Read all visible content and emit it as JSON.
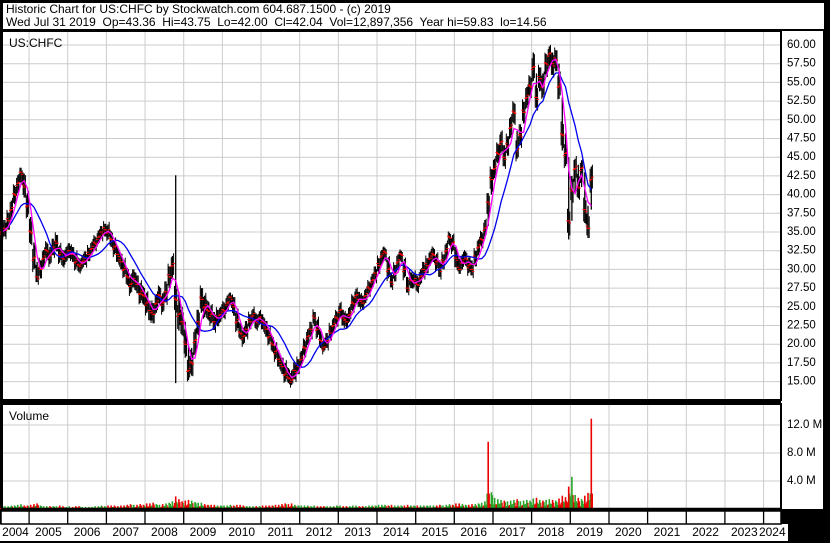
{
  "header": {
    "line1": "Historic Chart for US:CHFC by Stockwatch.com 604.687.1500 - (c) 2019",
    "line2": "Wed Jul 31 2019  Op=43.36  Hi=43.75  Lo=42.00  Cl=42.04  Vol=12,897,356  Year hi=59.83  lo=14.56"
  },
  "price_panel": {
    "symbol_label": "US:CHFC",
    "y_tick_labels": [
      "60.00",
      "57.50",
      "55.00",
      "52.50",
      "50.00",
      "47.50",
      "45.00",
      "42.50",
      "40.00",
      "37.50",
      "35.00",
      "32.50",
      "30.00",
      "27.50",
      "25.00",
      "22.50",
      "20.00",
      "17.50",
      "15.00"
    ],
    "y_tick_values": [
      60,
      57.5,
      55,
      52.5,
      50,
      47.5,
      45,
      42.5,
      40,
      37.5,
      35,
      32.5,
      30,
      27.5,
      25,
      22.5,
      20,
      17.5,
      15
    ]
  },
  "volume_panel": {
    "label": "Volume",
    "y_ticks": [
      {
        "label": "12.0 M",
        "value": 12
      },
      {
        "label": "8.0 M",
        "value": 8
      },
      {
        "label": "4.0 M",
        "value": 4
      }
    ]
  },
  "x_axis": {
    "years": [
      "2004",
      "2005",
      "2006",
      "2007",
      "2008",
      "2009",
      "2010",
      "2011",
      "2012",
      "2013",
      "2014",
      "2015",
      "2016",
      "2017",
      "2018",
      "2019",
      "2020",
      "2021",
      "2022",
      "2023",
      "2024"
    ]
  },
  "colors": {
    "background": "#000000",
    "panel_bg": "#ffffff",
    "grid": "#cccccc",
    "border": "#000000",
    "bar": "#000000",
    "close_tick": "#ff0000",
    "ma_fast": "#ff00ff",
    "ma_slow": "#0000ee",
    "volume_up": "#27a427",
    "volume_down": "#ee0000",
    "text": "#000000"
  },
  "chart_data": {
    "type": "line",
    "subtype": "ohlc-bars-with-moving-averages-and-volume",
    "symbol": "US:CHFC",
    "title": "Historic Chart for US:CHFC by Stockwatch.com 604.687.1500 - (c) 2019",
    "last_quote": {
      "date": "Wed Jul 31 2019",
      "open": 43.36,
      "high": 43.75,
      "low": 42.0,
      "close": 42.04,
      "volume": 12897356
    },
    "year_hi": 59.83,
    "year_lo": 14.56,
    "x_range": [
      2004.3,
      2024.45
    ],
    "price_grid_range": [
      15,
      60
    ],
    "price_grid_step": 2.5,
    "volume_grid_values_M": [
      4,
      8,
      12
    ],
    "legend_position": "none",
    "grid": true,
    "overlays": [
      {
        "name": "ma-fast",
        "type": "sma",
        "window": 3,
        "color": "#ff00ff"
      },
      {
        "name": "ma-slow",
        "type": "sma",
        "window": 9,
        "color": "#0000ee"
      }
    ],
    "monthly_t_close_low_high_volM": [
      [
        2004.292,
        35.0,
        33.8,
        36.0,
        0.5
      ],
      [
        2004.375,
        35.5,
        34.4,
        36.6,
        0.4
      ],
      [
        2004.458,
        36.5,
        35.3,
        37.6,
        0.4
      ],
      [
        2004.542,
        38.0,
        36.8,
        39.2,
        0.5
      ],
      [
        2004.625,
        40.0,
        38.7,
        41.2,
        0.5
      ],
      [
        2004.708,
        41.5,
        40.2,
        42.6,
        0.6
      ],
      [
        2004.792,
        43.0,
        41.6,
        43.6,
        0.7
      ],
      [
        2004.875,
        41.0,
        39.6,
        42.8,
        0.5
      ],
      [
        2004.958,
        38.5,
        37.0,
        40.2,
        0.5
      ],
      [
        2005.042,
        35.0,
        33.4,
        37.0,
        0.6
      ],
      [
        2005.125,
        31.5,
        30.0,
        33.6,
        0.7
      ],
      [
        2005.208,
        29.0,
        28.3,
        31.0,
        0.8
      ],
      [
        2005.292,
        30.0,
        28.8,
        31.2,
        0.5
      ],
      [
        2005.375,
        31.5,
        30.3,
        32.6,
        0.4
      ],
      [
        2005.458,
        32.5,
        31.4,
        33.6,
        0.4
      ],
      [
        2005.542,
        31.8,
        30.7,
        33.0,
        0.4
      ],
      [
        2005.625,
        33.0,
        31.9,
        34.1,
        0.4
      ],
      [
        2005.708,
        33.5,
        32.4,
        34.6,
        0.4
      ],
      [
        2005.792,
        32.0,
        30.9,
        33.2,
        0.5
      ],
      [
        2005.875,
        31.5,
        30.4,
        32.6,
        0.4
      ],
      [
        2005.958,
        32.0,
        31.0,
        33.0,
        0.3
      ],
      [
        2006.042,
        32.5,
        31.5,
        33.5,
        0.4
      ],
      [
        2006.125,
        32.0,
        31.0,
        33.0,
        0.3
      ],
      [
        2006.208,
        31.0,
        30.0,
        32.2,
        0.4
      ],
      [
        2006.292,
        30.5,
        29.6,
        31.5,
        0.4
      ],
      [
        2006.375,
        31.0,
        30.1,
        31.9,
        0.3
      ],
      [
        2006.458,
        31.5,
        30.6,
        32.4,
        0.3
      ],
      [
        2006.542,
        32.0,
        31.1,
        32.9,
        0.3
      ],
      [
        2006.625,
        32.8,
        31.9,
        33.7,
        0.3
      ],
      [
        2006.708,
        33.5,
        32.6,
        34.4,
        0.4
      ],
      [
        2006.792,
        34.3,
        33.4,
        35.2,
        0.4
      ],
      [
        2006.875,
        35.0,
        34.1,
        35.8,
        0.5
      ],
      [
        2006.958,
        35.3,
        34.4,
        36.1,
        0.4
      ],
      [
        2007.042,
        35.0,
        34.0,
        36.0,
        0.5
      ],
      [
        2007.125,
        34.0,
        33.0,
        35.1,
        0.5
      ],
      [
        2007.208,
        33.0,
        32.0,
        34.1,
        0.5
      ],
      [
        2007.292,
        32.0,
        31.0,
        33.1,
        0.4
      ],
      [
        2007.375,
        31.0,
        30.0,
        32.1,
        0.5
      ],
      [
        2007.458,
        30.0,
        29.0,
        31.2,
        0.5
      ],
      [
        2007.542,
        29.0,
        27.9,
        30.2,
        0.6
      ],
      [
        2007.625,
        28.0,
        26.8,
        29.3,
        0.7
      ],
      [
        2007.708,
        28.8,
        27.6,
        30.0,
        0.6
      ],
      [
        2007.792,
        28.0,
        26.8,
        29.2,
        0.6
      ],
      [
        2007.875,
        26.8,
        25.5,
        28.2,
        0.7
      ],
      [
        2007.958,
        26.5,
        25.3,
        27.7,
        0.6
      ],
      [
        2008.042,
        25.5,
        24.2,
        26.9,
        0.8
      ],
      [
        2008.125,
        24.5,
        23.2,
        25.8,
        0.8
      ],
      [
        2008.208,
        24.0,
        22.8,
        25.5,
        0.9
      ],
      [
        2008.292,
        25.5,
        24.2,
        26.7,
        0.7
      ],
      [
        2008.375,
        26.5,
        25.3,
        27.7,
        0.6
      ],
      [
        2008.458,
        25.5,
        24.3,
        26.8,
        0.7
      ],
      [
        2008.542,
        27.0,
        25.6,
        28.4,
        0.8
      ],
      [
        2008.625,
        29.0,
        27.5,
        30.4,
        0.9
      ],
      [
        2008.708,
        30.5,
        28.8,
        31.8,
        1.1
      ],
      [
        2008.792,
        26.0,
        14.8,
        42.6,
        1.8,
        "r"
      ],
      [
        2008.875,
        24.0,
        21.8,
        27.0,
        1.4
      ],
      [
        2008.958,
        23.0,
        21.2,
        25.0,
        1.1
      ],
      [
        2009.042,
        20.0,
        18.2,
        23.0,
        1.2
      ],
      [
        2009.125,
        16.5,
        15.2,
        20.0,
        1.3
      ],
      [
        2009.208,
        17.5,
        15.8,
        19.5,
        1.2
      ],
      [
        2009.292,
        20.5,
        18.6,
        22.0,
        1.0
      ],
      [
        2009.375,
        23.0,
        21.2,
        24.6,
        0.9
      ],
      [
        2009.458,
        26.0,
        24.2,
        27.5,
        0.9
      ],
      [
        2009.542,
        25.0,
        23.6,
        26.5,
        0.7
      ],
      [
        2009.625,
        24.5,
        23.3,
        25.8,
        0.6
      ],
      [
        2009.708,
        24.0,
        22.8,
        25.2,
        0.6
      ],
      [
        2009.792,
        23.0,
        21.9,
        24.3,
        0.6
      ],
      [
        2009.875,
        23.5,
        22.4,
        24.6,
        0.5
      ],
      [
        2009.958,
        24.0,
        23.0,
        25.0,
        0.5
      ],
      [
        2010.042,
        24.5,
        23.5,
        25.6,
        0.5
      ],
      [
        2010.125,
        25.5,
        24.4,
        26.5,
        0.5
      ],
      [
        2010.208,
        26.3,
        25.2,
        26.9,
        0.6
      ],
      [
        2010.292,
        25.0,
        23.8,
        26.3,
        0.5
      ],
      [
        2010.375,
        23.0,
        21.8,
        24.4,
        0.6
      ],
      [
        2010.458,
        21.5,
        20.7,
        22.8,
        0.6
      ],
      [
        2010.542,
        21.0,
        20.0,
        22.2,
        0.5
      ],
      [
        2010.625,
        22.0,
        21.0,
        23.1,
        0.4
      ],
      [
        2010.708,
        23.0,
        22.0,
        24.0,
        0.4
      ],
      [
        2010.792,
        23.8,
        22.8,
        24.7,
        0.4
      ],
      [
        2010.875,
        23.0,
        22.0,
        24.1,
        0.4
      ],
      [
        2010.958,
        23.5,
        22.6,
        24.4,
        0.4
      ],
      [
        2011.042,
        23.0,
        22.0,
        24.0,
        0.5
      ],
      [
        2011.125,
        22.0,
        21.0,
        23.1,
        0.5
      ],
      [
        2011.208,
        21.0,
        20.0,
        22.1,
        0.5
      ],
      [
        2011.292,
        20.0,
        19.0,
        21.1,
        0.5
      ],
      [
        2011.375,
        19.0,
        18.0,
        20.1,
        0.6
      ],
      [
        2011.458,
        18.0,
        17.0,
        19.2,
        0.6
      ],
      [
        2011.542,
        17.0,
        16.0,
        18.2,
        0.7
      ],
      [
        2011.625,
        16.0,
        15.0,
        17.5,
        0.8
      ],
      [
        2011.708,
        15.5,
        14.8,
        16.8,
        0.7
      ],
      [
        2011.792,
        15.2,
        14.56,
        16.5,
        0.8
      ],
      [
        2011.875,
        16.5,
        15.3,
        17.6,
        0.6
      ],
      [
        2011.958,
        17.0,
        16.0,
        18.0,
        0.5
      ],
      [
        2012.042,
        18.0,
        17.0,
        19.1,
        0.5
      ],
      [
        2012.125,
        19.5,
        18.4,
        20.6,
        0.5
      ],
      [
        2012.208,
        21.0,
        19.9,
        22.0,
        0.5
      ],
      [
        2012.292,
        22.0,
        21.0,
        23.0,
        0.4
      ],
      [
        2012.375,
        23.5,
        22.4,
        24.3,
        0.5
      ],
      [
        2012.458,
        22.0,
        20.9,
        23.3,
        0.4
      ],
      [
        2012.542,
        20.5,
        19.5,
        21.8,
        0.4
      ],
      [
        2012.625,
        19.5,
        19.0,
        20.7,
        0.4
      ],
      [
        2012.708,
        20.5,
        19.5,
        21.5,
        0.4
      ],
      [
        2012.792,
        21.5,
        20.5,
        22.5,
        0.4
      ],
      [
        2012.875,
        22.5,
        21.5,
        23.5,
        0.4
      ],
      [
        2012.958,
        23.5,
        22.5,
        24.4,
        0.5
      ],
      [
        2013.042,
        24.5,
        23.5,
        25.5,
        0.5
      ],
      [
        2013.125,
        23.5,
        22.5,
        24.6,
        0.4
      ],
      [
        2013.208,
        23.0,
        22.1,
        24.1,
        0.4
      ],
      [
        2013.292,
        24.0,
        23.0,
        25.0,
        0.4
      ],
      [
        2013.375,
        25.5,
        24.4,
        26.5,
        0.5
      ],
      [
        2013.458,
        26.5,
        25.5,
        27.4,
        0.5
      ],
      [
        2013.542,
        26.0,
        25.0,
        27.0,
        0.4
      ],
      [
        2013.625,
        25.5,
        24.6,
        26.5,
        0.4
      ],
      [
        2013.708,
        26.5,
        25.5,
        27.4,
        0.4
      ],
      [
        2013.792,
        27.5,
        26.5,
        28.4,
        0.5
      ],
      [
        2013.875,
        28.5,
        27.5,
        29.4,
        0.5
      ],
      [
        2013.958,
        29.5,
        28.5,
        30.4,
        0.5
      ],
      [
        2014.042,
        30.5,
        29.4,
        31.5,
        0.6
      ],
      [
        2014.125,
        31.8,
        30.7,
        32.6,
        0.6
      ],
      [
        2014.208,
        32.3,
        31.2,
        32.9,
        0.6
      ],
      [
        2014.292,
        30.0,
        28.8,
        31.6,
        0.5
      ],
      [
        2014.375,
        28.3,
        27.6,
        29.6,
        0.6
      ],
      [
        2014.458,
        29.5,
        28.4,
        30.6,
        0.5
      ],
      [
        2014.542,
        31.0,
        29.9,
        32.0,
        0.5
      ],
      [
        2014.625,
        32.0,
        31.0,
        32.5,
        0.5
      ],
      [
        2014.708,
        30.0,
        28.9,
        31.4,
        0.5
      ],
      [
        2014.792,
        27.5,
        26.9,
        29.0,
        0.6
      ],
      [
        2014.875,
        28.5,
        27.5,
        29.6,
        0.5
      ],
      [
        2014.958,
        28.5,
        27.6,
        29.5,
        0.5
      ],
      [
        2015.042,
        28.0,
        27.0,
        29.1,
        0.5
      ],
      [
        2015.125,
        29.0,
        28.0,
        30.0,
        0.5
      ],
      [
        2015.208,
        30.0,
        29.0,
        31.0,
        0.5
      ],
      [
        2015.292,
        30.5,
        29.5,
        31.5,
        0.5
      ],
      [
        2015.375,
        31.5,
        30.5,
        32.4,
        0.5
      ],
      [
        2015.458,
        32.0,
        31.0,
        32.9,
        0.5
      ],
      [
        2015.542,
        31.0,
        30.0,
        32.1,
        0.5
      ],
      [
        2015.625,
        30.0,
        29.0,
        31.2,
        0.6
      ],
      [
        2015.708,
        31.0,
        30.0,
        32.0,
        0.5
      ],
      [
        2015.792,
        32.5,
        31.4,
        33.5,
        0.6
      ],
      [
        2015.875,
        34.3,
        33.2,
        34.9,
        0.7
      ],
      [
        2015.958,
        33.5,
        32.4,
        34.6,
        0.6
      ],
      [
        2016.042,
        31.5,
        30.3,
        33.0,
        0.8
      ],
      [
        2016.125,
        30.0,
        29.4,
        31.4,
        0.8
      ],
      [
        2016.208,
        31.0,
        30.0,
        32.0,
        0.7
      ],
      [
        2016.292,
        31.5,
        30.5,
        32.4,
        0.6
      ],
      [
        2016.375,
        30.5,
        29.5,
        31.6,
        0.6
      ],
      [
        2016.458,
        30.0,
        29.2,
        31.2,
        0.7
      ],
      [
        2016.542,
        31.5,
        30.4,
        32.5,
        0.7
      ],
      [
        2016.625,
        33.0,
        31.9,
        34.0,
        0.8
      ],
      [
        2016.708,
        34.0,
        33.0,
        35.0,
        0.9
      ],
      [
        2016.792,
        35.5,
        34.4,
        36.6,
        1.1
      ],
      [
        2016.875,
        39.0,
        35.8,
        40.2,
        9.6,
        "r"
      ],
      [
        2016.958,
        42.0,
        40.0,
        43.4,
        2.4
      ],
      [
        2017.042,
        43.5,
        42.2,
        44.8,
        1.6
      ],
      [
        2017.125,
        45.5,
        44.2,
        46.8,
        1.4
      ],
      [
        2017.208,
        47.0,
        45.6,
        48.4,
        1.3
      ],
      [
        2017.292,
        45.0,
        43.8,
        46.6,
        1.2
      ],
      [
        2017.375,
        46.5,
        45.2,
        47.8,
        1.1
      ],
      [
        2017.458,
        49.0,
        47.6,
        50.4,
        1.2
      ],
      [
        2017.542,
        51.0,
        49.5,
        52.3,
        1.3
      ],
      [
        2017.625,
        46.0,
        44.8,
        48.5,
        1.4
      ],
      [
        2017.708,
        48.0,
        46.6,
        49.4,
        1.1
      ],
      [
        2017.792,
        51.0,
        49.5,
        52.4,
        1.2
      ],
      [
        2017.875,
        53.0,
        51.6,
        54.4,
        1.3
      ],
      [
        2017.958,
        54.5,
        53.1,
        55.8,
        1.2
      ],
      [
        2018.042,
        57.0,
        55.2,
        59.0,
        1.5
      ],
      [
        2018.125,
        53.0,
        51.6,
        56.2,
        1.6
      ],
      [
        2018.208,
        55.5,
        53.8,
        57.0,
        1.3
      ],
      [
        2018.292,
        54.5,
        53.0,
        56.2,
        1.2
      ],
      [
        2018.375,
        57.5,
        55.8,
        58.8,
        1.3
      ],
      [
        2018.458,
        58.8,
        57.2,
        59.83,
        1.4
      ],
      [
        2018.542,
        57.5,
        56.0,
        59.0,
        1.3
      ],
      [
        2018.625,
        58.0,
        56.5,
        59.3,
        1.2
      ],
      [
        2018.708,
        54.5,
        52.8,
        57.5,
        1.5
      ],
      [
        2018.792,
        48.0,
        45.9,
        53.0,
        1.9
      ],
      [
        2018.875,
        45.5,
        43.8,
        48.2,
        1.7
      ],
      [
        2018.958,
        36.5,
        34.0,
        45.0,
        3.2,
        "r"
      ],
      [
        2019.042,
        40.5,
        36.5,
        42.5,
        4.6,
        "g"
      ],
      [
        2019.125,
        43.5,
        40.2,
        44.8,
        2.0
      ],
      [
        2019.208,
        41.0,
        39.5,
        44.0,
        1.6
      ],
      [
        2019.292,
        43.5,
        41.0,
        44.6,
        1.4
      ],
      [
        2019.375,
        38.0,
        36.2,
        43.0,
        1.9
      ],
      [
        2019.458,
        35.5,
        34.2,
        38.5,
        2.3
      ],
      [
        2019.542,
        42.04,
        38.0,
        43.75,
        12.9,
        "r"
      ]
    ]
  }
}
